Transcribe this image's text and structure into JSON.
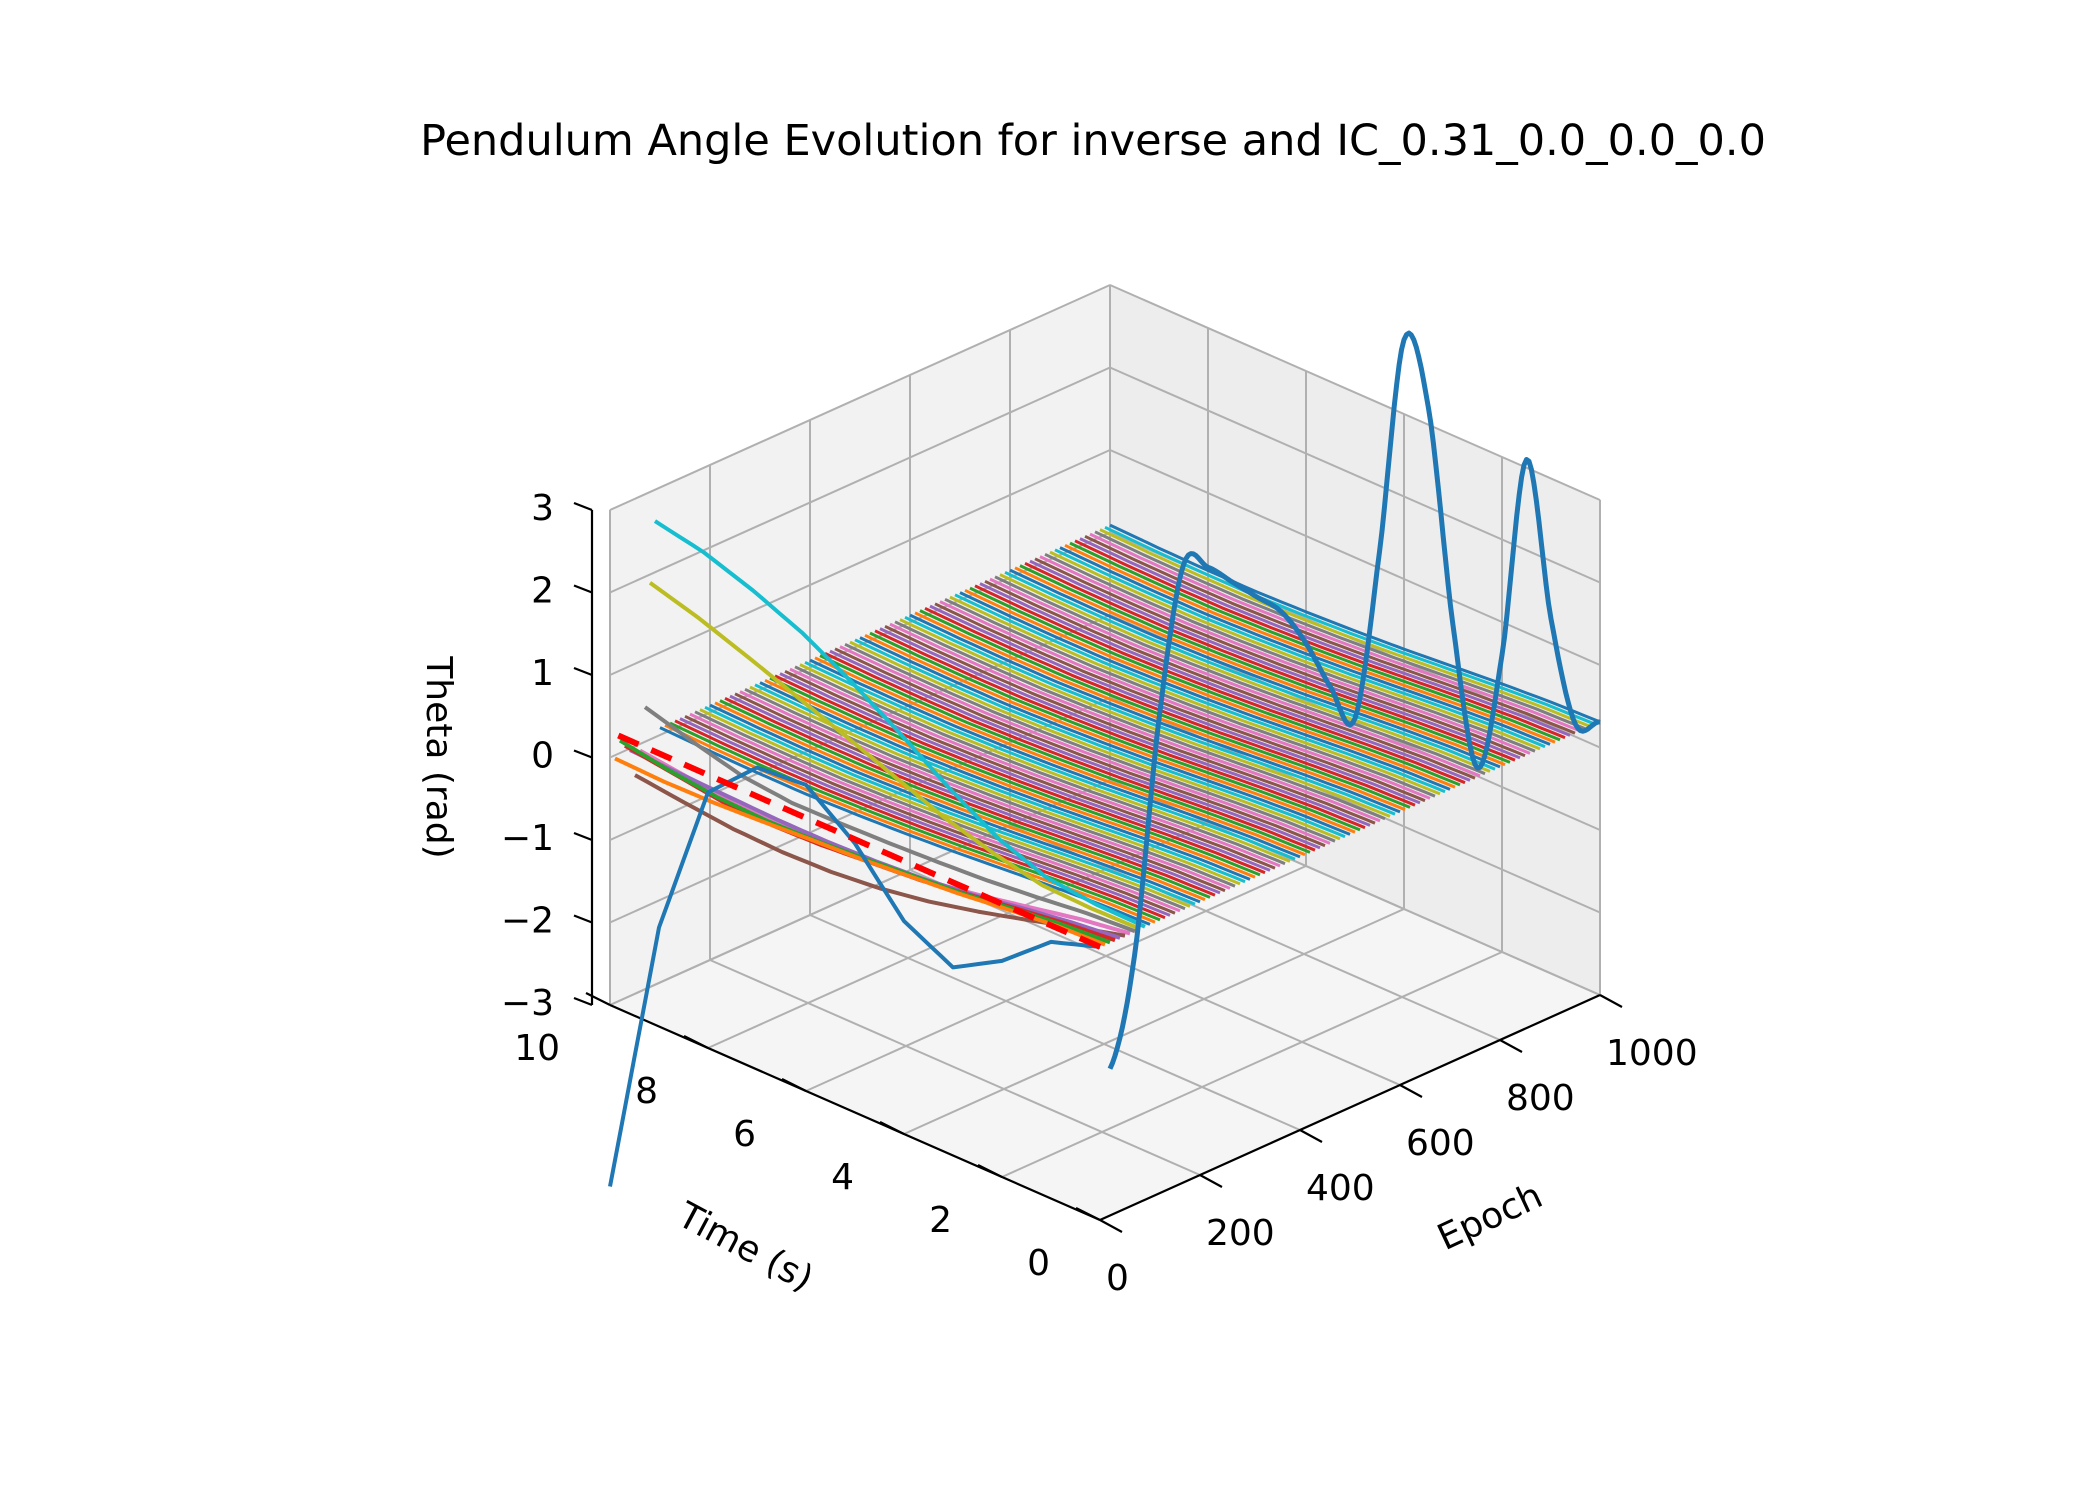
{
  "chart_data": {
    "type": "line",
    "projection": "3d",
    "title": "Pendulum Angle Evolution for inverse and IC_0.31_0.0_0.0_0.0",
    "xlabel": "Time (s)",
    "ylabel": "Epoch",
    "zlabel": "Theta (rad)",
    "xlim": [
      0,
      10
    ],
    "ylim": [
      0,
      1000
    ],
    "zlim": [
      -3,
      3
    ],
    "xticks": [
      "0",
      "2",
      "4",
      "6",
      "8",
      "10"
    ],
    "yticks": [
      "0",
      "200",
      "400",
      "600",
      "800",
      "1000"
    ],
    "zticks": [
      "−3",
      "−2",
      "−1",
      "0",
      "1",
      "2",
      "3"
    ],
    "grid": true,
    "legend": "none",
    "early_epoch_series": [
      {
        "epoch": 0,
        "color": "#1f77b4",
        "theta": [
          0.31,
          0.11,
          -0.38,
          -0.72,
          -0.42,
          0.26,
          0.71,
          0.66,
          0.1,
          -1.8,
          -5.2
        ]
      },
      {
        "epoch": 10,
        "color": "#ff7f0e",
        "theta": [
          0.31,
          0.28,
          0.22,
          0.15,
          0.1,
          0.05,
          0.02,
          -0.02,
          -0.05,
          -0.06,
          -0.04
        ]
      },
      {
        "epoch": 20,
        "color": "#2ca02c",
        "theta": [
          0.31,
          0.27,
          0.2,
          0.12,
          0.07,
          0.02,
          -0.02,
          -0.04,
          -0.02,
          0.05,
          0.15
        ]
      },
      {
        "epoch": 30,
        "color": "#d62728",
        "theta": [
          0.31,
          0.25,
          0.17,
          0.08,
          0.0,
          -0.05,
          -0.1,
          -0.12,
          -0.1,
          -0.02,
          0.06
        ]
      },
      {
        "epoch": 40,
        "color": "#9467bd",
        "theta": [
          0.31,
          0.24,
          0.15,
          0.05,
          -0.02,
          -0.06,
          -0.08,
          -0.08,
          -0.06,
          -0.04,
          -0.02
        ]
      },
      {
        "epoch": 50,
        "color": "#8c564b",
        "theta": [
          0.31,
          0.15,
          -0.02,
          -0.18,
          -0.32,
          -0.42,
          -0.48,
          -0.5,
          -0.48,
          -0.42,
          -0.35
        ]
      },
      {
        "epoch": 60,
        "color": "#e377c2",
        "theta": [
          0.31,
          0.22,
          0.1,
          -0.02,
          -0.12,
          -0.18,
          -0.22,
          -0.22,
          -0.2,
          -0.15,
          -0.08
        ]
      },
      {
        "epoch": 70,
        "color": "#7f7f7f",
        "theta": [
          0.31,
          0.27,
          0.2,
          0.14,
          0.1,
          0.07,
          0.05,
          0.04,
          0.1,
          0.25,
          0.42
        ]
      },
      {
        "epoch": 80,
        "color": "#bcbd22",
        "theta": [
          0.31,
          0.3,
          0.32,
          0.45,
          0.62,
          0.85,
          1.08,
          1.3,
          1.52,
          1.73,
          1.9
        ]
      },
      {
        "epoch": 90,
        "color": "#17becf",
        "theta": [
          0.31,
          0.32,
          0.38,
          0.6,
          0.95,
          1.35,
          1.72,
          2.05,
          2.3,
          2.5,
          2.62
        ]
      }
    ],
    "converged_band": {
      "epoch_range": [
        100,
        1000
      ],
      "epoch_step": 10,
      "colors": [
        "#1f77b4",
        "#ff7f0e",
        "#2ca02c",
        "#d62728",
        "#9467bd",
        "#8c564b",
        "#e377c2",
        "#7f7f7f",
        "#bcbd22",
        "#17becf"
      ],
      "theta": [
        0.31,
        0.29,
        0.25,
        0.2,
        0.15,
        0.11,
        0.08,
        0.06,
        0.06,
        0.07,
        0.09
      ]
    },
    "reference_series": {
      "epoch": 0,
      "color": "#ff0000",
      "style": "dashed",
      "x": [
        0,
        10
      ],
      "theta": [
        0.31,
        0.31
      ]
    },
    "highlighted_series": {
      "epoch": 1000,
      "color": "#1f77b4",
      "x": [
        0,
        0.5,
        1,
        1.5,
        2,
        2.5,
        3,
        3.5,
        4,
        4.5,
        5,
        5.5,
        6,
        6.5,
        7,
        7.5,
        8,
        8.5,
        9,
        9.5,
        10
      ],
      "theta": [
        0.31,
        0.15,
        1.3,
        3.1,
        0.6,
        -0.9,
        0.7,
        3.2,
        3.9,
        1.2,
        -0.95,
        -0.7,
        -0.3,
        -0.05,
        0.0,
        0.05,
        0.1,
        0.0,
        -2.0,
        -5.0,
        -6.5
      ]
    }
  }
}
